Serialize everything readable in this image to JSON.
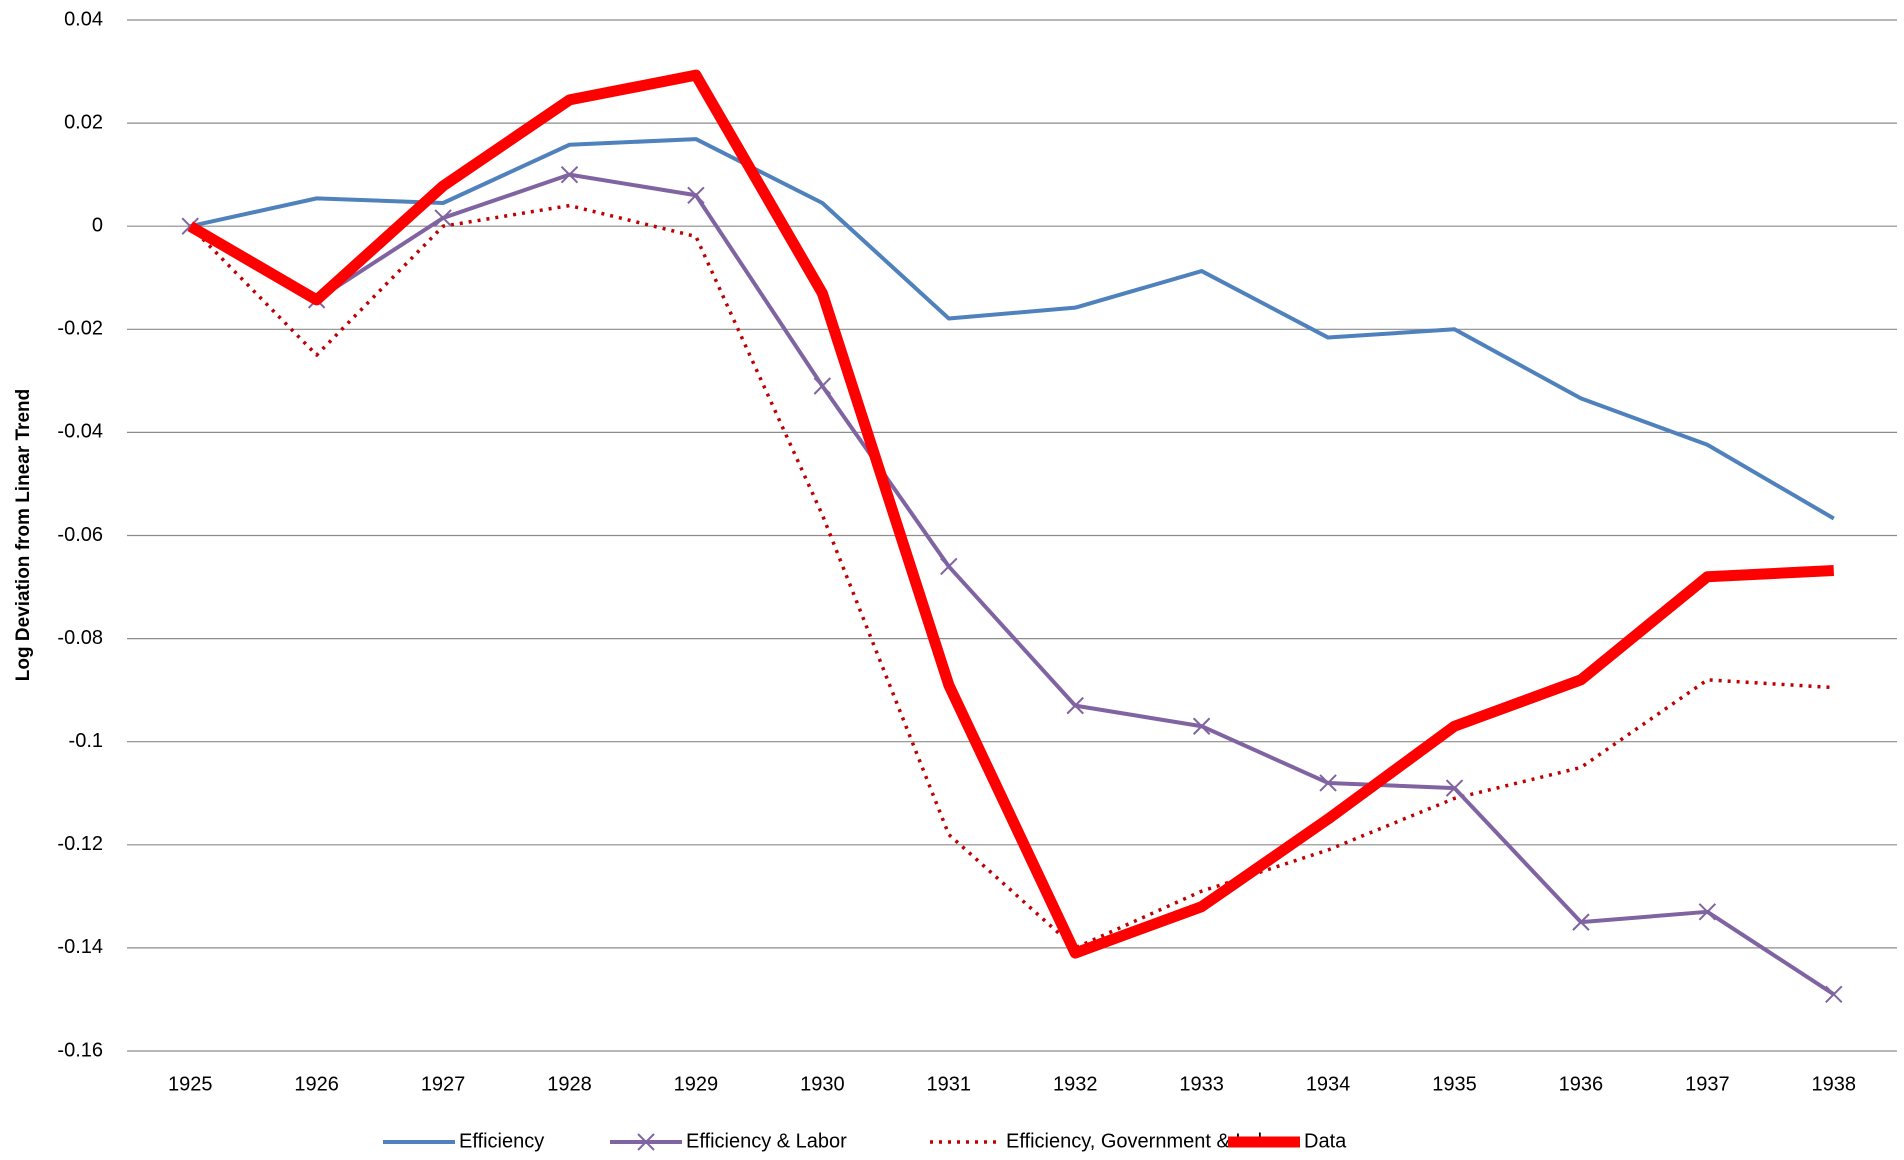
{
  "chart_data": {
    "type": "line",
    "y_label": "Log Deviation from Linear Trend",
    "categories": [
      "1925",
      "1926",
      "1927",
      "1928",
      "1929",
      "1930",
      "1931",
      "1932",
      "1933",
      "1934",
      "1935",
      "1936",
      "1937",
      "1938"
    ],
    "series": [
      {
        "name": "Efficiency",
        "color": "#4f81bd",
        "linestyle": "solid",
        "values": [
          0,
          0.0054,
          0.0045,
          0.0158,
          0.0169,
          0.0045,
          -0.0179,
          -0.0158,
          -0.0087,
          -0.0216,
          -0.02,
          -0.0334,
          -0.0424,
          -0.0567
        ]
      },
      {
        "name": "Efficiency & Labor",
        "color": "#8064a2",
        "linestyle": "solid",
        "marker": "x",
        "values": [
          0,
          -0.0143,
          0.0016,
          0.01,
          0.006,
          -0.031,
          -0.066,
          -0.093,
          -0.097,
          -0.108,
          -0.109,
          -0.135,
          -0.133,
          -0.149
        ]
      },
      {
        "name": "Efficiency, Government & Labor",
        "color": "#c00000",
        "linestyle": "dotted",
        "values": [
          0,
          -0.025,
          0,
          0.004,
          -0.002,
          -0.056,
          -0.118,
          -0.14,
          -0.129,
          -0.121,
          -0.111,
          -0.105,
          -0.088,
          -0.0895
        ]
      },
      {
        "name": "Data",
        "color": "#ff0000",
        "linestyle": "bold",
        "values": [
          0,
          -0.0143,
          0.0078,
          0.0245,
          0.0293,
          -0.013,
          -0.089,
          -0.141,
          -0.132,
          -0.115,
          -0.097,
          -0.088,
          -0.068,
          -0.0668
        ]
      }
    ],
    "ylim": [
      -0.16,
      0.04
    ],
    "yticks": [
      0.04,
      0.02,
      0,
      -0.02,
      -0.04,
      -0.06,
      -0.08,
      -0.1,
      -0.12,
      -0.14,
      -0.16
    ],
    "grid": true,
    "legend": "bottom"
  }
}
